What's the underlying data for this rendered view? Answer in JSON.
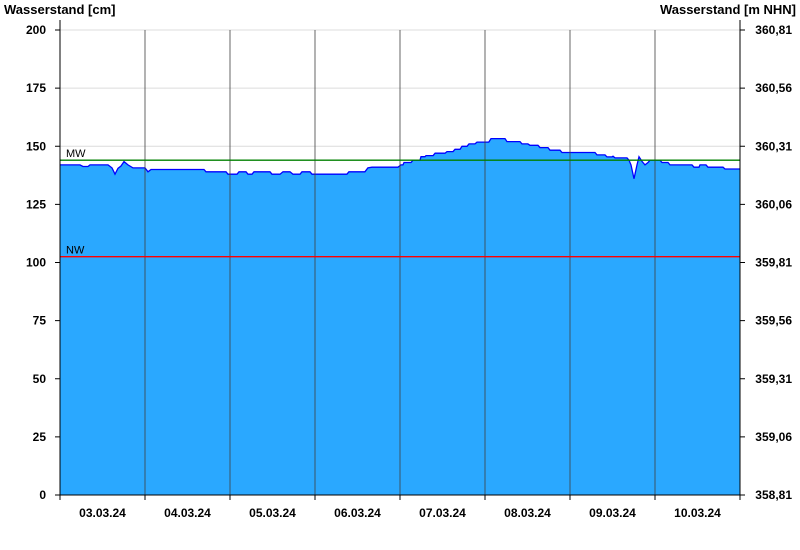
{
  "chart_data": {
    "type": "area",
    "left_axis_title": "Wasserstand [cm]",
    "right_axis_title": "Wasserstand [m NHN]",
    "ylim": [
      0,
      200
    ],
    "xlim": [
      "2024-03-03T00:00",
      "2024-03-11T00:00"
    ],
    "grid": true,
    "y_ticks": [
      "0",
      "25",
      "50",
      "75",
      "100",
      "125",
      "150",
      "175",
      "200"
    ],
    "y_tick_values": [
      0,
      25,
      50,
      75,
      100,
      125,
      150,
      175,
      200
    ],
    "right_ticks": [
      "358,81",
      "359,06",
      "359,31",
      "359,56",
      "359,81",
      "360,06",
      "360,31",
      "360,56",
      "360,81"
    ],
    "x_ticks": [
      "03.03.24",
      "04.03.24",
      "05.03.24",
      "06.03.24",
      "07.03.24",
      "08.03.24",
      "09.03.24",
      "10.03.24"
    ],
    "reference_lines": [
      {
        "label": "MW",
        "value": 144,
        "color": "#008000"
      },
      {
        "label": "NW",
        "value": 102.5,
        "color": "#FF0000"
      }
    ],
    "colors": {
      "fill": "#2AA8FF",
      "line": "#0000FF",
      "grid": "#DCDCDC",
      "day_lines": "#404040"
    },
    "series": [
      {
        "points": [
          [
            "2024-03-03T00:00",
            142
          ],
          [
            "2024-03-03T05:39",
            142
          ],
          [
            "2024-03-03T06:30",
            141.3
          ],
          [
            "2024-03-03T07:54",
            141.3
          ],
          [
            "2024-03-03T08:28",
            142
          ],
          [
            "2024-03-03T13:33",
            142
          ],
          [
            "2024-03-03T14:41",
            140.7
          ],
          [
            "2024-03-03T15:32",
            138
          ],
          [
            "2024-03-03T16:23",
            140.5
          ],
          [
            "2024-03-03T17:14",
            141.5
          ],
          [
            "2024-03-03T18:04",
            143.4
          ],
          [
            "2024-03-03T19:12",
            142
          ],
          [
            "2024-03-03T20:37",
            140.7
          ],
          [
            "2024-03-04T00:00",
            140.7
          ],
          [
            "2024-03-04T00:51",
            139
          ],
          [
            "2024-03-04T01:42",
            140
          ],
          [
            "2024-03-04T16:39",
            140
          ],
          [
            "2024-03-04T17:13",
            139
          ],
          [
            "2024-03-04T22:52",
            139
          ],
          [
            "2024-03-04T23:26",
            138
          ],
          [
            "2024-03-05T01:59",
            138
          ],
          [
            "2024-03-05T02:33",
            139
          ],
          [
            "2024-03-05T04:31",
            139
          ],
          [
            "2024-03-05T05:05",
            138
          ],
          [
            "2024-03-05T06:13",
            138
          ],
          [
            "2024-03-05T06:47",
            139
          ],
          [
            "2024-03-05T11:18",
            139
          ],
          [
            "2024-03-05T11:52",
            138
          ],
          [
            "2024-03-05T14:07",
            138
          ],
          [
            "2024-03-05T14:58",
            139
          ],
          [
            "2024-03-05T16:56",
            139
          ],
          [
            "2024-03-05T17:47",
            138
          ],
          [
            "2024-03-05T19:46",
            138
          ],
          [
            "2024-03-05T20:20",
            139
          ],
          [
            "2024-03-05T22:35",
            139
          ],
          [
            "2024-03-05T23:09",
            138
          ],
          [
            "2024-03-06T09:01",
            138
          ],
          [
            "2024-03-06T09:35",
            139
          ],
          [
            "2024-03-06T14:06",
            139
          ],
          [
            "2024-03-06T14:57",
            140.7
          ],
          [
            "2024-03-06T16:05",
            141
          ],
          [
            "2024-03-06T23:26",
            141
          ],
          [
            "2024-03-07T00:17",
            142
          ],
          [
            "2024-03-07T00:51",
            142
          ],
          [
            "2024-03-07T01:08",
            143
          ],
          [
            "2024-03-07T03:06",
            143
          ],
          [
            "2024-03-07T03:40",
            144
          ],
          [
            "2024-03-07T05:39",
            144
          ],
          [
            "2024-03-07T05:56",
            145.5
          ],
          [
            "2024-03-07T07:04",
            145.5
          ],
          [
            "2024-03-07T07:21",
            146
          ],
          [
            "2024-03-07T09:20",
            146
          ],
          [
            "2024-03-07T09:54",
            147
          ],
          [
            "2024-03-07T12:43",
            147
          ],
          [
            "2024-03-07T13:17",
            147.7
          ],
          [
            "2024-03-07T14:58",
            147.7
          ],
          [
            "2024-03-07T15:32",
            148.7
          ],
          [
            "2024-03-07T16:56",
            148.7
          ],
          [
            "2024-03-07T17:30",
            150
          ],
          [
            "2024-03-07T18:55",
            150
          ],
          [
            "2024-03-07T19:29",
            151
          ],
          [
            "2024-03-07T21:11",
            151
          ],
          [
            "2024-03-07T21:45",
            151.8
          ],
          [
            "2024-03-08T01:05",
            151.8
          ],
          [
            "2024-03-08T01:42",
            153.3
          ],
          [
            "2024-03-08T05:39",
            153.3
          ],
          [
            "2024-03-08T06:13",
            152
          ],
          [
            "2024-03-08T09:53",
            152
          ],
          [
            "2024-03-08T10:27",
            151
          ],
          [
            "2024-03-08T12:06",
            151
          ],
          [
            "2024-03-08T12:43",
            150.4
          ],
          [
            "2024-03-08T14:58",
            150.4
          ],
          [
            "2024-03-08T15:32",
            149.4
          ],
          [
            "2024-03-08T17:47",
            149.4
          ],
          [
            "2024-03-08T18:21",
            148.3
          ],
          [
            "2024-03-08T21:11",
            148.3
          ],
          [
            "2024-03-08T21:45",
            147.3
          ],
          [
            "2024-03-09T07:04",
            147.3
          ],
          [
            "2024-03-09T07:38",
            146.3
          ],
          [
            "2024-03-09T09:53",
            146.3
          ],
          [
            "2024-03-09T10:27",
            145.4
          ],
          [
            "2024-03-09T11:52",
            145.4
          ],
          [
            "2024-03-09T12:09",
            145.7
          ],
          [
            "2024-03-09T12:43",
            145
          ],
          [
            "2024-03-09T16:06",
            145
          ],
          [
            "2024-03-09T16:39",
            144
          ],
          [
            "2024-03-09T17:13",
            142
          ],
          [
            "2024-03-09T18:04",
            136
          ],
          [
            "2024-03-09T18:55",
            142
          ],
          [
            "2024-03-09T19:29",
            145.5
          ],
          [
            "2024-03-09T20:20",
            143.5
          ],
          [
            "2024-03-09T21:11",
            142
          ],
          [
            "2024-03-09T22:01",
            143
          ],
          [
            "2024-03-09T22:35",
            144
          ],
          [
            "2024-03-10T01:25",
            144
          ],
          [
            "2024-03-10T01:59",
            143
          ],
          [
            "2024-03-10T03:40",
            143
          ],
          [
            "2024-03-10T04:14",
            142
          ],
          [
            "2024-03-10T10:27",
            142
          ],
          [
            "2024-03-10T11:01",
            141
          ],
          [
            "2024-03-10T12:26",
            141
          ],
          [
            "2024-03-10T12:43",
            142
          ],
          [
            "2024-03-10T14:24",
            142
          ],
          [
            "2024-03-10T14:58",
            141
          ],
          [
            "2024-03-10T19:12",
            141
          ],
          [
            "2024-03-10T19:46",
            140.2
          ],
          [
            "2024-03-11T00:00",
            140.2
          ]
        ]
      }
    ]
  }
}
